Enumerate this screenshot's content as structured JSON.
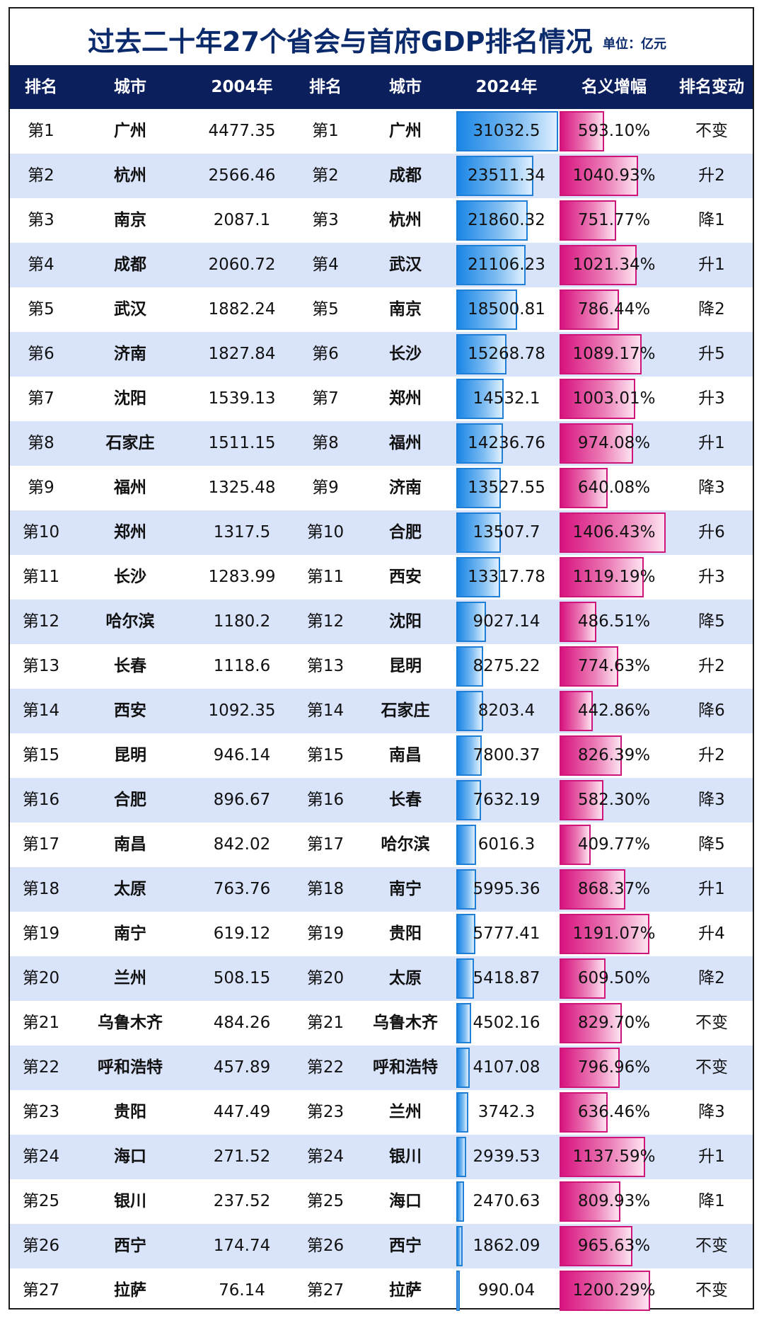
{
  "title": "过去二十年27个省会与首府GDP排名情况",
  "unit": "单位：亿元",
  "headers": [
    "排名",
    "城市",
    "2004年",
    "排名",
    "城市",
    "2024年",
    "名义增幅",
    "排名变动"
  ],
  "rows": [
    {
      "rank04": "第1",
      "city04": "广州",
      "gdp04": "4477.35",
      "rank24": "第1",
      "city24": "广州",
      "gdp24": "31032.5",
      "growth": "593.10%",
      "change": "不变"
    },
    {
      "rank04": "第2",
      "city04": "杭州",
      "gdp04": "2566.46",
      "rank24": "第2",
      "city24": "成都",
      "gdp24": "23511.34",
      "growth": "1040.93%",
      "change": "升2"
    },
    {
      "rank04": "第3",
      "city04": "南京",
      "gdp04": "2087.1",
      "rank24": "第3",
      "city24": "杭州",
      "gdp24": "21860.32",
      "growth": "751.77%",
      "change": "降1"
    },
    {
      "rank04": "第4",
      "city04": "成都",
      "gdp04": "2060.72",
      "rank24": "第4",
      "city24": "武汉",
      "gdp24": "21106.23",
      "growth": "1021.34%",
      "change": "升1"
    },
    {
      "rank04": "第5",
      "city04": "武汉",
      "gdp04": "1882.24",
      "rank24": "第5",
      "city24": "南京",
      "gdp24": "18500.81",
      "growth": "786.44%",
      "change": "降2"
    },
    {
      "rank04": "第6",
      "city04": "济南",
      "gdp04": "1827.84",
      "rank24": "第6",
      "city24": "长沙",
      "gdp24": "15268.78",
      "growth": "1089.17%",
      "change": "升5"
    },
    {
      "rank04": "第7",
      "city04": "沈阳",
      "gdp04": "1539.13",
      "rank24": "第7",
      "city24": "郑州",
      "gdp24": "14532.1",
      "growth": "1003.01%",
      "change": "升3"
    },
    {
      "rank04": "第8",
      "city04": "石家庄",
      "gdp04": "1511.15",
      "rank24": "第8",
      "city24": "福州",
      "gdp24": "14236.76",
      "growth": "974.08%",
      "change": "升1"
    },
    {
      "rank04": "第9",
      "city04": "福州",
      "gdp04": "1325.48",
      "rank24": "第9",
      "city24": "济南",
      "gdp24": "13527.55",
      "growth": "640.08%",
      "change": "降3"
    },
    {
      "rank04": "第10",
      "city04": "郑州",
      "gdp04": "1317.5",
      "rank24": "第10",
      "city24": "合肥",
      "gdp24": "13507.7",
      "growth": "1406.43%",
      "change": "升6"
    },
    {
      "rank04": "第11",
      "city04": "长沙",
      "gdp04": "1283.99",
      "rank24": "第11",
      "city24": "西安",
      "gdp24": "13317.78",
      "growth": "1119.19%",
      "change": "升3"
    },
    {
      "rank04": "第12",
      "city04": "哈尔滨",
      "gdp04": "1180.2",
      "rank24": "第12",
      "city24": "沈阳",
      "gdp24": "9027.14",
      "growth": "486.51%",
      "change": "降5"
    },
    {
      "rank04": "第13",
      "city04": "长春",
      "gdp04": "1118.6",
      "rank24": "第13",
      "city24": "昆明",
      "gdp24": "8275.22",
      "growth": "774.63%",
      "change": "升2"
    },
    {
      "rank04": "第14",
      "city04": "西安",
      "gdp04": "1092.35",
      "rank24": "第14",
      "city24": "石家庄",
      "gdp24": "8203.4",
      "growth": "442.86%",
      "change": "降6"
    },
    {
      "rank04": "第15",
      "city04": "昆明",
      "gdp04": "946.14",
      "rank24": "第15",
      "city24": "南昌",
      "gdp24": "7800.37",
      "growth": "826.39%",
      "change": "升2"
    },
    {
      "rank04": "第16",
      "city04": "合肥",
      "gdp04": "896.67",
      "rank24": "第16",
      "city24": "长春",
      "gdp24": "7632.19",
      "growth": "582.30%",
      "change": "降3"
    },
    {
      "rank04": "第17",
      "city04": "南昌",
      "gdp04": "842.02",
      "rank24": "第17",
      "city24": "哈尔滨",
      "gdp24": "6016.3",
      "growth": "409.77%",
      "change": "降5"
    },
    {
      "rank04": "第18",
      "city04": "太原",
      "gdp04": "763.76",
      "rank24": "第18",
      "city24": "南宁",
      "gdp24": "5995.36",
      "growth": "868.37%",
      "change": "升1"
    },
    {
      "rank04": "第19",
      "city04": "南宁",
      "gdp04": "619.12",
      "rank24": "第19",
      "city24": "贵阳",
      "gdp24": "5777.41",
      "growth": "1191.07%",
      "change": "升4"
    },
    {
      "rank04": "第20",
      "city04": "兰州",
      "gdp04": "508.15",
      "rank24": "第20",
      "city24": "太原",
      "gdp24": "5418.87",
      "growth": "609.50%",
      "change": "降2"
    },
    {
      "rank04": "第21",
      "city04": "乌鲁木齐",
      "gdp04": "484.26",
      "rank24": "第21",
      "city24": "乌鲁木齐",
      "gdp24": "4502.16",
      "growth": "829.70%",
      "change": "不变"
    },
    {
      "rank04": "第22",
      "city04": "呼和浩特",
      "gdp04": "457.89",
      "rank24": "第22",
      "city24": "呼和浩特",
      "gdp24": "4107.08",
      "growth": "796.96%",
      "change": "不变"
    },
    {
      "rank04": "第23",
      "city04": "贵阳",
      "gdp04": "447.49",
      "rank24": "第23",
      "city24": "兰州",
      "gdp24": "3742.3",
      "growth": "636.46%",
      "change": "降3"
    },
    {
      "rank04": "第24",
      "city04": "海口",
      "gdp04": "271.52",
      "rank24": "第24",
      "city24": "银川",
      "gdp24": "2939.53",
      "growth": "1137.59%",
      "change": "升1"
    },
    {
      "rank04": "第25",
      "city04": "银川",
      "gdp04": "237.52",
      "rank24": "第25",
      "city24": "海口",
      "gdp24": "2470.63",
      "growth": "809.93%",
      "change": "降1"
    },
    {
      "rank04": "第26",
      "city04": "西宁",
      "gdp04": "174.74",
      "rank24": "第26",
      "city24": "西宁",
      "gdp24": "1862.09",
      "growth": "965.63%",
      "change": "不变"
    },
    {
      "rank04": "第27",
      "city04": "拉萨",
      "gdp04": "76.14",
      "rank24": "第27",
      "city24": "拉萨",
      "gdp24": "990.04",
      "growth": "1200.29%",
      "change": "不变"
    }
  ],
  "chart_data": {
    "type": "table",
    "columns": [
      "排名",
      "城市",
      "2004年",
      "排名",
      "城市",
      "2024年",
      "名义增幅",
      "排名变动"
    ],
    "series": [
      {
        "name": "2024年",
        "values": [
          31032.5,
          23511.34,
          21860.32,
          21106.23,
          18500.81,
          15268.78,
          14532.1,
          14236.76,
          13527.55,
          13507.7,
          13317.78,
          9027.14,
          8275.22,
          8203.4,
          7800.37,
          7632.19,
          6016.3,
          5995.36,
          5777.41,
          5418.87,
          4502.16,
          4107.08,
          3742.3,
          2939.53,
          2470.63,
          1862.09,
          990.04
        ]
      },
      {
        "name": "名义增幅",
        "values": [
          593.1,
          1040.93,
          751.77,
          1021.34,
          786.44,
          1089.17,
          1003.01,
          974.08,
          640.08,
          1406.43,
          1119.19,
          486.51,
          774.63,
          442.86,
          826.39,
          582.3,
          409.77,
          868.37,
          1191.07,
          609.5,
          829.7,
          796.96,
          636.46,
          1137.59,
          809.93,
          965.63,
          1200.29
        ]
      }
    ]
  },
  "colors": {
    "header_bg": "#0b1f5c",
    "title": "#0b2a6b",
    "alt_row": "#d9e4fb",
    "gdp_bar": "#1a86e6",
    "growth_bar": "#d8137f"
  }
}
